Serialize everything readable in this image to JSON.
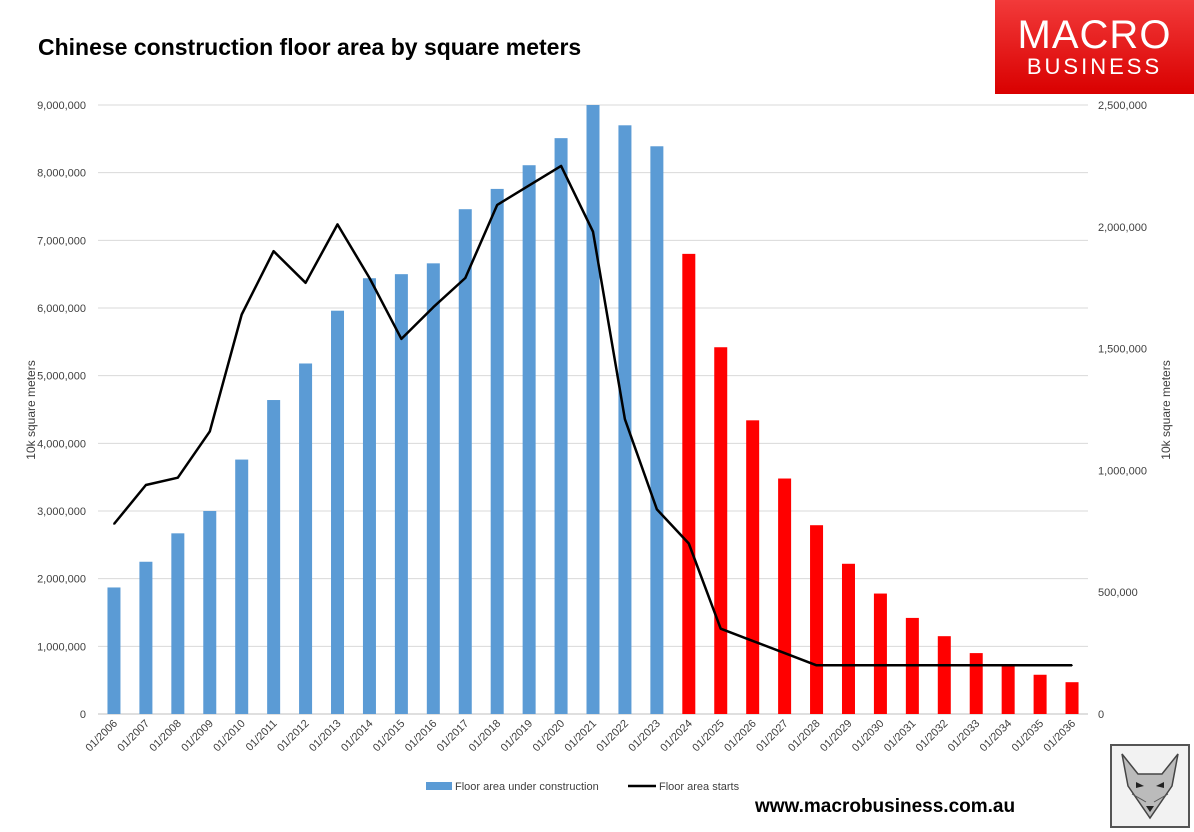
{
  "logo": {
    "line1": "MACRO",
    "line2": "BUSINESS"
  },
  "footer_url": "www.macrobusiness.com.au",
  "colors": {
    "actual": "#5b9bd5",
    "forecast": "#ff0000",
    "line": "#000000",
    "grid": "#d9d9d9"
  },
  "icons": {
    "corner_badge": "fox-icon"
  },
  "chart_data": {
    "type": "bar",
    "title": "Chinese construction floor area by square meters",
    "categories": [
      "01/2006",
      "01/2007",
      "01/2008",
      "01/2009",
      "01/2010",
      "01/2011",
      "01/2012",
      "01/2013",
      "01/2014",
      "01/2015",
      "01/2016",
      "01/2017",
      "01/2018",
      "01/2019",
      "01/2020",
      "01/2021",
      "01/2022",
      "01/2023",
      "01/2024",
      "01/2025",
      "01/2026",
      "01/2027",
      "01/2028",
      "01/2029",
      "01/2030",
      "01/2031",
      "01/2032",
      "01/2033",
      "01/2034",
      "01/2035",
      "01/2036"
    ],
    "forecast_start_index": 18,
    "ylabel": "10k square meters",
    "y2label": "10k square meters",
    "ylim": [
      0,
      9000000
    ],
    "y2lim": [
      0,
      2500000
    ],
    "yticks": [
      "0",
      "1,000,000",
      "2,000,000",
      "3,000,000",
      "4,000,000",
      "5,000,000",
      "6,000,000",
      "7,000,000",
      "8,000,000",
      "9,000,000"
    ],
    "y2ticks": [
      "0",
      "500,000",
      "1,000,000",
      "1,500,000",
      "2,000,000",
      "2,500,000"
    ],
    "grid": true,
    "legend_position": "bottom",
    "series": [
      {
        "name": "Floor area under construction",
        "type": "bar",
        "axis": "left",
        "values": [
          1870000,
          2250000,
          2670000,
          3000000,
          3760000,
          4640000,
          5180000,
          5960000,
          6440000,
          6500000,
          6660000,
          7460000,
          7760000,
          8110000,
          8510000,
          9000000,
          8700000,
          8390000,
          6800000,
          5420000,
          4340000,
          3480000,
          2790000,
          2220000,
          1780000,
          1420000,
          1150000,
          900000,
          720000,
          580000,
          470000
        ]
      },
      {
        "name": "Floor area starts",
        "type": "line",
        "axis": "right",
        "values": [
          780000,
          940000,
          970000,
          1160000,
          1640000,
          1900000,
          1770000,
          2010000,
          1790000,
          1540000,
          1670000,
          1790000,
          2090000,
          2170000,
          2250000,
          1980000,
          1210000,
          840000,
          700000,
          350000,
          300000,
          250000,
          200000,
          200000,
          200000,
          200000,
          200000,
          200000,
          200000,
          200000,
          200000
        ]
      }
    ]
  }
}
